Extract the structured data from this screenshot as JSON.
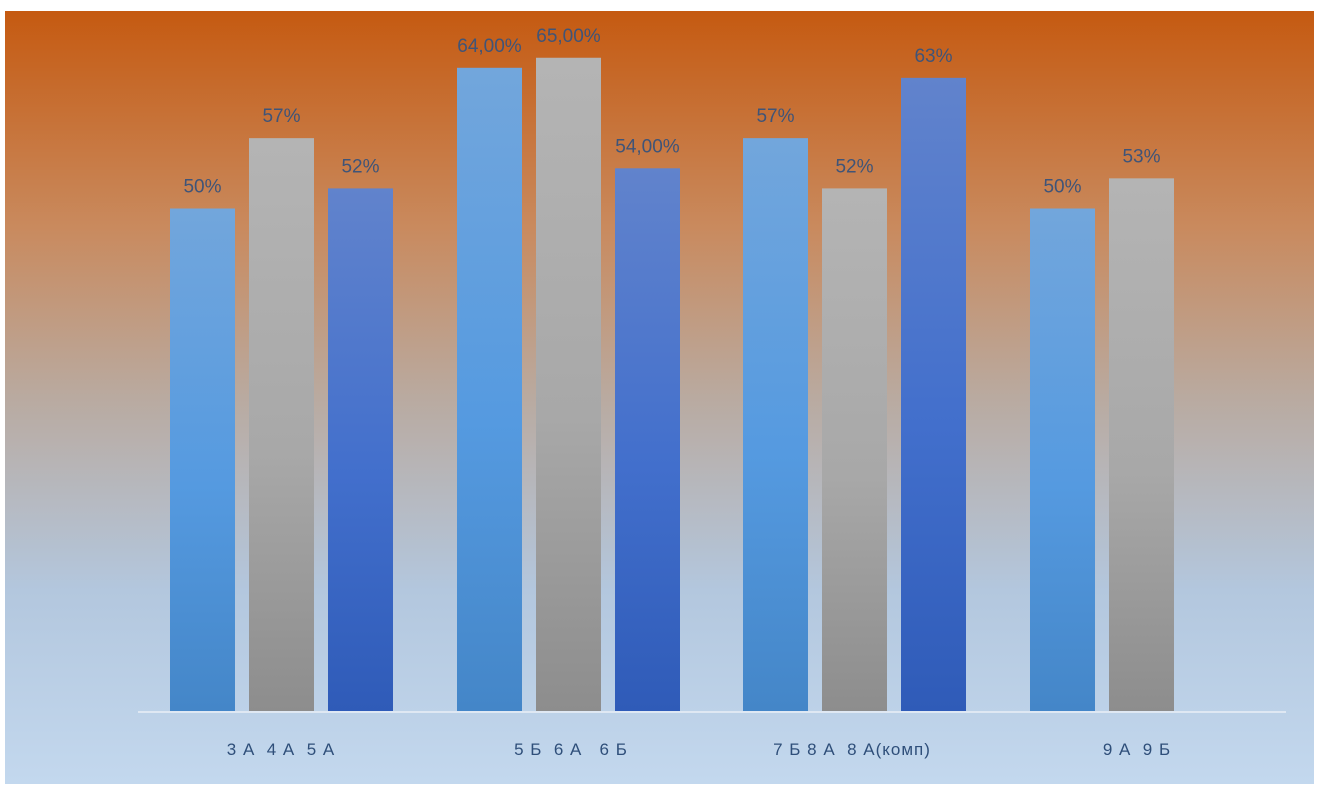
{
  "chart_data": {
    "type": "bar",
    "title": "",
    "xlabel": "",
    "ylabel": "",
    "ylim": [
      0,
      100
    ],
    "grid": false,
    "legend": "none",
    "categories": [
      "3 А  4 А  5 А",
      "5 Б  6 А   6 Б",
      "7 Б 8 А  8 А(комп)",
      "9 А  9 Б"
    ],
    "groups": [
      {
        "category": "3 А  4 А  5 А",
        "bars": [
          {
            "value": 50,
            "label": "50%",
            "style": "blue-light"
          },
          {
            "value": 57,
            "label": "57%",
            "style": "gray"
          },
          {
            "value": 52,
            "label": "52%",
            "style": "blue-dark"
          }
        ]
      },
      {
        "category": "5 Б  6 А   6 Б",
        "bars": [
          {
            "value": 64,
            "label": "64,00%",
            "style": "blue-light"
          },
          {
            "value": 65,
            "label": "65,00%",
            "style": "gray"
          },
          {
            "value": 54,
            "label": "54,00%",
            "style": "blue-dark"
          }
        ]
      },
      {
        "category": "7 Б 8 А  8 А(комп)",
        "bars": [
          {
            "value": 57,
            "label": "57%",
            "style": "blue-light"
          },
          {
            "value": 52,
            "label": "52%",
            "style": "gray"
          },
          {
            "value": 63,
            "label": "63%",
            "style": "blue-dark"
          }
        ]
      },
      {
        "category": "9 А  9 Б",
        "bars": [
          {
            "value": 50,
            "label": "50%",
            "style": "blue-light"
          },
          {
            "value": 53,
            "label": "53%",
            "style": "gray"
          }
        ]
      }
    ],
    "colors": {
      "blue-light": [
        "#72a6dc",
        "#559ae0",
        "#4486c8"
      ],
      "gray": [
        "#b4b4b4",
        "#a8a8a8",
        "#8d8d8d"
      ],
      "blue-dark": [
        "#6183cc",
        "#426fcc",
        "#2f5bb8"
      ],
      "value_label": "#3f5478",
      "category_label": "#2f4f7a",
      "axis_line": "#dfe8f3"
    }
  }
}
